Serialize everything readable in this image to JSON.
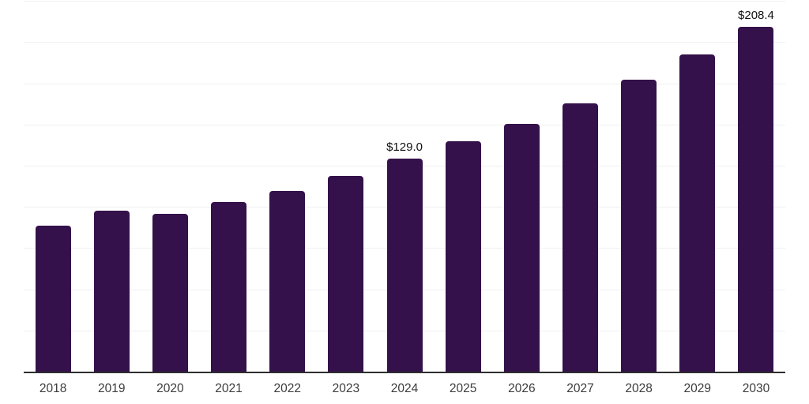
{
  "chart_data": {
    "type": "bar",
    "title": "",
    "xlabel": "",
    "ylabel": "",
    "categories": [
      "2018",
      "2019",
      "2020",
      "2021",
      "2022",
      "2023",
      "2024",
      "2025",
      "2026",
      "2027",
      "2028",
      "2029",
      "2030"
    ],
    "values": [
      88.3,
      97.5,
      95.4,
      102.8,
      109.6,
      118.3,
      129.0,
      139.2,
      149.7,
      162.4,
      176.3,
      191.9,
      208.4
    ],
    "point_labels": {
      "2024": "$129.0",
      "2030": "$208.4"
    },
    "value_prefix": "$",
    "ylim": [
      0,
      225
    ],
    "grid": true,
    "gridline_count": 9,
    "legend": false,
    "bar_color": "#34114a",
    "gridline_color": "#f0f0f1",
    "axis_color": "#2e2e2e",
    "value_label_color": "#111111",
    "tick_label_color": "#3c3c3c"
  }
}
